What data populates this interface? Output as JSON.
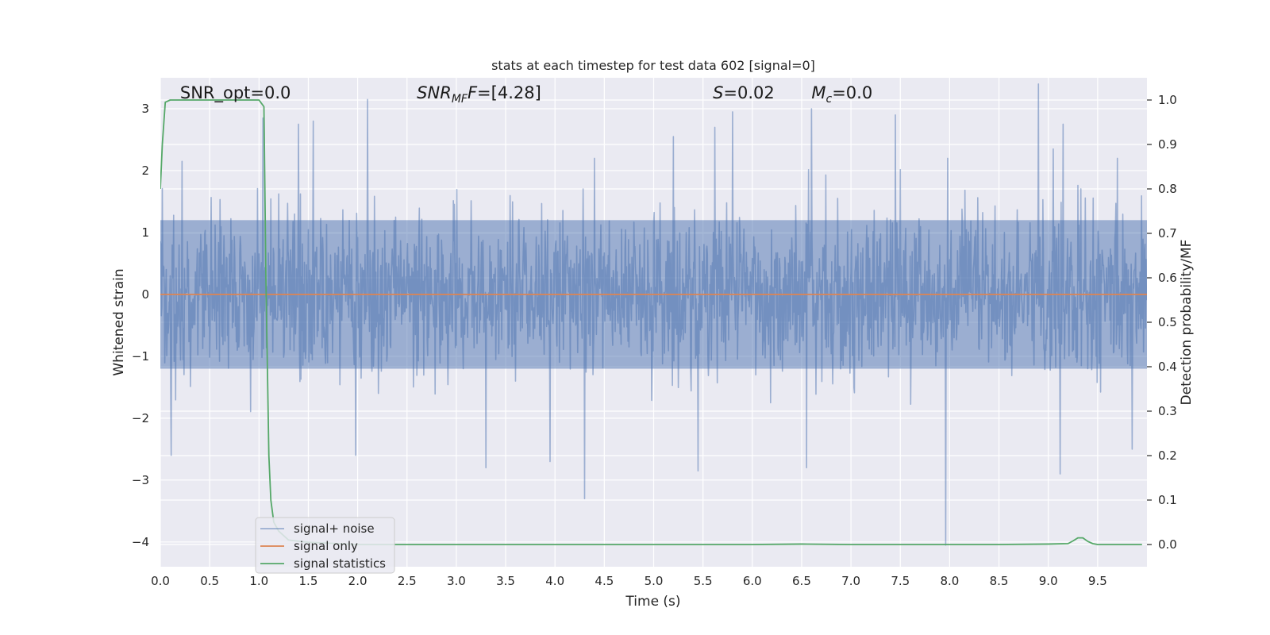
{
  "chart_data": {
    "type": "line",
    "title": "stats at each timestep for test data 602 [signal=0]",
    "xlabel": "Time (s)",
    "ylabel": "Whitened strain",
    "ylabel_right": "Detection probability/MF",
    "xlim": [
      0.0,
      10.0
    ],
    "ylim": [
      -4.4,
      3.5
    ],
    "ylim_right": [
      -0.05,
      1.05
    ],
    "x_ticks": [
      0.0,
      0.5,
      1.0,
      1.5,
      2.0,
      2.5,
      3.0,
      3.5,
      4.0,
      4.5,
      5.0,
      5.5,
      6.0,
      6.5,
      7.0,
      7.5,
      8.0,
      8.5,
      9.0,
      9.5
    ],
    "x_tick_labels": [
      "0.0",
      "0.5",
      "1.0",
      "1.5",
      "2.0",
      "2.5",
      "3.0",
      "3.5",
      "4.0",
      "4.5",
      "5.0",
      "5.5",
      "6.0",
      "6.5",
      "7.0",
      "7.5",
      "8.0",
      "8.5",
      "9.0",
      "9.5"
    ],
    "y_ticks": [
      3,
      2,
      1,
      0,
      -1,
      -2,
      -3,
      -4
    ],
    "y_tick_labels": [
      "3",
      "2",
      "1",
      "0",
      "−1",
      "−2",
      "−3",
      "−4"
    ],
    "y_right_ticks": [
      1.0,
      0.9,
      0.8,
      0.7,
      0.6,
      0.5,
      0.4,
      0.3,
      0.2,
      0.1,
      0.0
    ],
    "y_right_tick_labels": [
      "1.0",
      "0.9",
      "0.8",
      "0.7",
      "0.6",
      "0.5",
      "0.4",
      "0.3",
      "0.2",
      "0.1",
      "0.0"
    ],
    "grid": true,
    "legend_position": "lower-left",
    "annotations": [
      {
        "parts": [
          {
            "t": "SNR_opt=0.0",
            "i": false
          }
        ],
        "x": 0.2
      },
      {
        "parts": [
          {
            "t": "SNR",
            "i": true
          },
          {
            "t": "MF",
            "i": true,
            "sub": true
          },
          {
            "t": "F",
            "i": true
          },
          {
            "t": "=[4.28]",
            "i": false
          }
        ],
        "x": 2.6
      },
      {
        "parts": [
          {
            "t": "S",
            "i": true
          },
          {
            "t": "=0.02",
            "i": false
          }
        ],
        "x": 5.6
      },
      {
        "parts": [
          {
            "t": "M",
            "i": true
          },
          {
            "t": "c",
            "i": true,
            "sub": true
          },
          {
            "t": "=0.0",
            "i": false
          }
        ],
        "x": 6.6
      }
    ],
    "series": [
      {
        "name": "signal+ noise",
        "axis": "left",
        "color": "#4c72b0",
        "alpha": 0.5,
        "kind": "noise",
        "sample_rate": 200,
        "envelope": {
          "top": 1.5,
          "bottom": -1.5
        },
        "spikes": [
          {
            "x": 0.11,
            "y": 2.8
          },
          {
            "x": 0.22,
            "y": 2.15
          },
          {
            "x": 0.11,
            "y": -2.6
          },
          {
            "x": 1.04,
            "y": 2.85
          },
          {
            "x": 1.4,
            "y": 2.75
          },
          {
            "x": 1.55,
            "y": 2.8
          },
          {
            "x": 2.1,
            "y": 3.15
          },
          {
            "x": 1.98,
            "y": -2.6
          },
          {
            "x": 3.3,
            "y": -2.8
          },
          {
            "x": 3.95,
            "y": -2.7
          },
          {
            "x": 4.3,
            "y": -3.3
          },
          {
            "x": 4.4,
            "y": 2.2
          },
          {
            "x": 5.2,
            "y": 2.55
          },
          {
            "x": 5.45,
            "y": -2.85
          },
          {
            "x": 5.8,
            "y": 2.95
          },
          {
            "x": 5.62,
            "y": 2.7
          },
          {
            "x": 6.6,
            "y": 3.0
          },
          {
            "x": 6.55,
            "y": -2.8
          },
          {
            "x": 7.45,
            "y": 2.9
          },
          {
            "x": 7.96,
            "y": -4.05
          },
          {
            "x": 7.98,
            "y": 2.2
          },
          {
            "x": 8.9,
            "y": 3.4
          },
          {
            "x": 9.15,
            "y": 2.75
          },
          {
            "x": 9.12,
            "y": -2.9
          },
          {
            "x": 9.05,
            "y": 2.35
          },
          {
            "x": 9.85,
            "y": -2.5
          },
          {
            "x": 9.7,
            "y": 2.2
          }
        ]
      },
      {
        "name": "signal only",
        "axis": "left",
        "color": "#dd8452",
        "x": [
          0.0,
          10.0
        ],
        "y": [
          0.0,
          0.0
        ]
      },
      {
        "name": "signal statistics",
        "axis": "right",
        "color": "#55a868",
        "x": [
          0.0,
          0.02,
          0.05,
          0.1,
          0.2,
          0.5,
          0.8,
          1.0,
          1.05,
          1.07,
          1.1,
          1.12,
          1.15,
          1.2,
          1.3,
          1.5,
          2.0,
          3.0,
          4.0,
          5.0,
          6.0,
          6.5,
          7.0,
          8.0,
          8.5,
          9.0,
          9.2,
          9.25,
          9.3,
          9.35,
          9.4,
          9.45,
          9.5,
          9.7,
          9.95
        ],
        "y": [
          0.8,
          0.9,
          0.995,
          1.0,
          1.0,
          1.0,
          1.0,
          1.0,
          0.985,
          0.6,
          0.2,
          0.1,
          0.05,
          0.03,
          0.01,
          0.005,
          0.0,
          0.0,
          0.0,
          0.0,
          0.0,
          0.001,
          0.0,
          0.0,
          0.0,
          0.001,
          0.002,
          0.008,
          0.015,
          0.015,
          0.007,
          0.002,
          0.0,
          0.0,
          0.0
        ]
      }
    ]
  }
}
